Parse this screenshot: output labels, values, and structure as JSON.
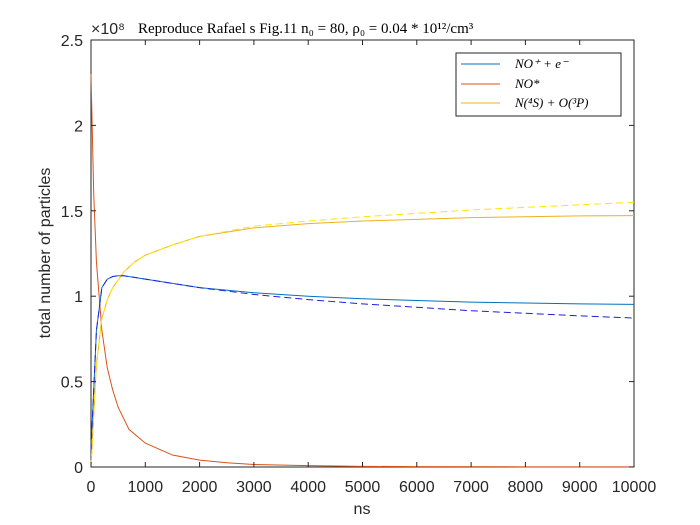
{
  "chart_data": {
    "type": "line",
    "title": "Reproduce Rafael s Fig.11 n₀ = 80, ρ₀ = 0.04 * 10¹²/cm³",
    "xlabel": "ns",
    "ylabel": "total number of particles",
    "xlim": [
      0,
      10000
    ],
    "ylim": [
      0,
      2.5
    ],
    "y_exponent_label": "×10⁸",
    "x_ticks": [
      "0",
      "1000",
      "2000",
      "3000",
      "4000",
      "5000",
      "6000",
      "7000",
      "8000",
      "9000",
      "10000"
    ],
    "y_ticks": [
      "0",
      "0.5",
      "1",
      "1.5",
      "2",
      "2.5"
    ],
    "grid": false,
    "legend_position": "top-right",
    "series": [
      {
        "name": "NO⁺ + e⁻",
        "color": "#0072BD",
        "style": "solid",
        "x": [
          0,
          100,
          200,
          300,
          400,
          500,
          600,
          800,
          1000,
          1500,
          2000,
          3000,
          4000,
          5000,
          6000,
          7000,
          8000,
          9000,
          10000
        ],
        "y": [
          0.1,
          0.8,
          1.05,
          1.1,
          1.115,
          1.12,
          1.12,
          1.11,
          1.1,
          1.075,
          1.05,
          1.02,
          1.0,
          0.985,
          0.975,
          0.965,
          0.96,
          0.955,
          0.952
        ]
      },
      {
        "name": "NO*",
        "color": "#D95319",
        "style": "solid",
        "x": [
          0,
          50,
          100,
          200,
          300,
          400,
          500,
          700,
          1000,
          1500,
          2000,
          2500,
          3000,
          4000,
          5000,
          6000,
          8000,
          10000
        ],
        "y": [
          2.3,
          1.6,
          1.2,
          0.8,
          0.58,
          0.45,
          0.35,
          0.22,
          0.14,
          0.07,
          0.04,
          0.025,
          0.015,
          0.008,
          0.004,
          0.002,
          0.001,
          0.001
        ]
      },
      {
        "name": "N(⁴S) + O(³P)",
        "color": "#EDB120",
        "style": "solid",
        "x": [
          0,
          100,
          200,
          300,
          400,
          600,
          800,
          1000,
          1500,
          2000,
          3000,
          4000,
          5000,
          6000,
          7000,
          8000,
          9000,
          10000
        ],
        "y": [
          0.0,
          0.6,
          0.87,
          0.98,
          1.05,
          1.14,
          1.2,
          1.24,
          1.3,
          1.35,
          1.4,
          1.425,
          1.44,
          1.45,
          1.46,
          1.465,
          1.47,
          1.472
        ]
      },
      {
        "name": "",
        "color": "#1F1FE0",
        "style": "dashed",
        "x": [
          0,
          100,
          200,
          300,
          400,
          500,
          600,
          800,
          1000,
          1500,
          2000,
          3000,
          4000,
          5000,
          6000,
          7000,
          8000,
          9000,
          10000
        ],
        "y": [
          0.1,
          0.8,
          1.05,
          1.1,
          1.115,
          1.12,
          1.12,
          1.11,
          1.1,
          1.075,
          1.05,
          1.01,
          0.98,
          0.955,
          0.935,
          0.915,
          0.9,
          0.885,
          0.872
        ]
      },
      {
        "name": "",
        "color": "#FFE600",
        "style": "dashed",
        "x": [
          0,
          100,
          200,
          300,
          400,
          600,
          800,
          1000,
          1500,
          2000,
          3000,
          4000,
          5000,
          6000,
          7000,
          8000,
          9000,
          10000
        ],
        "y": [
          0.0,
          0.6,
          0.87,
          0.98,
          1.05,
          1.14,
          1.2,
          1.24,
          1.3,
          1.35,
          1.41,
          1.44,
          1.465,
          1.485,
          1.505,
          1.52,
          1.535,
          1.55
        ]
      }
    ]
  }
}
